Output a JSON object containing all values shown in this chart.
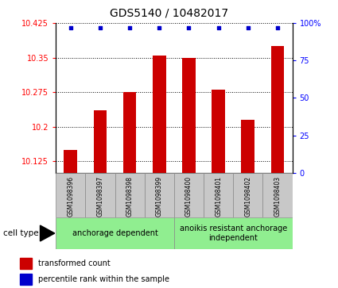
{
  "title": "GDS5140 / 10482017",
  "samples": [
    "GSM1098396",
    "GSM1098397",
    "GSM1098398",
    "GSM1098399",
    "GSM1098400",
    "GSM1098401",
    "GSM1098402",
    "GSM1098403"
  ],
  "bar_values": [
    10.15,
    10.235,
    10.275,
    10.355,
    10.35,
    10.28,
    10.215,
    10.375
  ],
  "percentile_values": [
    97,
    97,
    97,
    97,
    97,
    97,
    97,
    97
  ],
  "ylim_left": [
    10.1,
    10.425
  ],
  "ylim_right": [
    0,
    100
  ],
  "yticks_left": [
    10.125,
    10.2,
    10.275,
    10.35,
    10.425
  ],
  "yticks_right": [
    0,
    25,
    50,
    75,
    100
  ],
  "bar_color": "#cc0000",
  "dot_color": "#0000cc",
  "bar_width": 0.45,
  "group1_label": "anchorage dependent",
  "group2_label": "anoikis resistant anchorage\nindependent",
  "group_color": "#90ee90",
  "sample_box_color": "#c8c8c8",
  "cell_type_label": "cell type",
  "legend_bar_label": "transformed count",
  "legend_dot_label": "percentile rank within the sample",
  "title_fontsize": 10,
  "tick_fontsize": 7,
  "sample_fontsize": 5.5,
  "group_fontsize": 7,
  "legend_fontsize": 7
}
